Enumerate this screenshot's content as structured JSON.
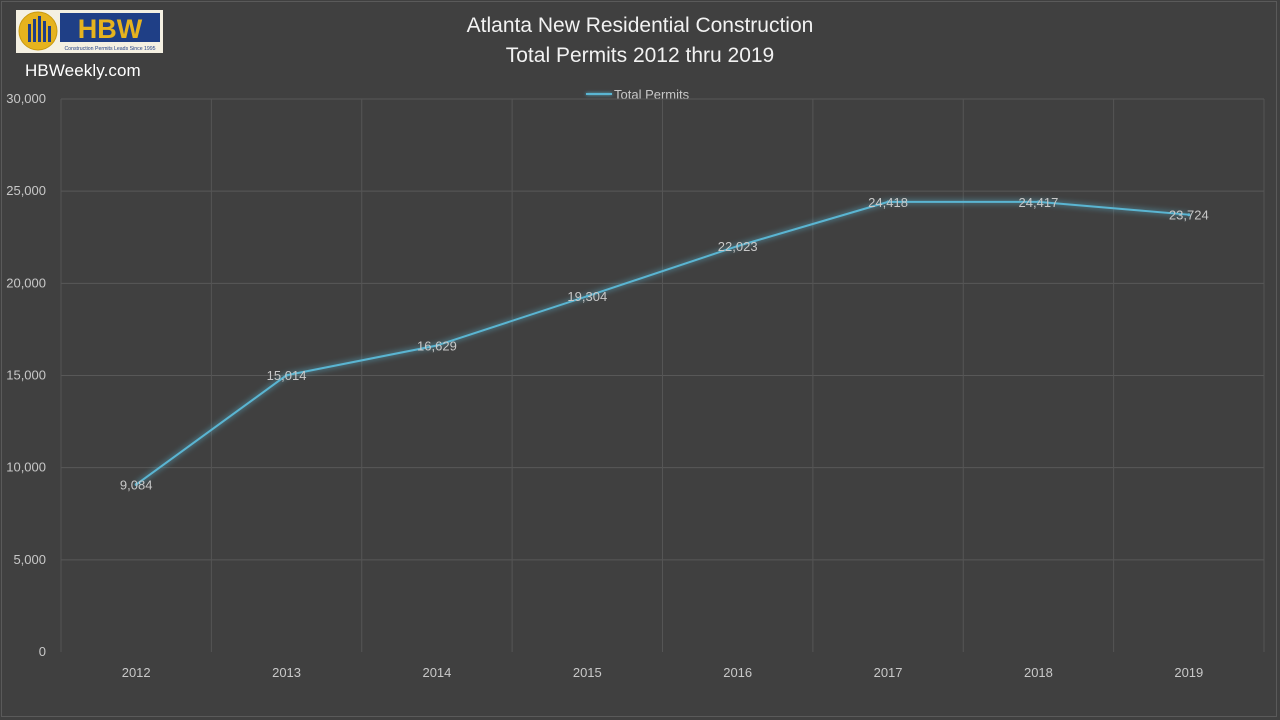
{
  "logo": {
    "text": "HBW",
    "tagline": "Construction Permits Leads Since 1995",
    "colors": {
      "blue": "#1f3f86",
      "gold": "#e6b31e"
    }
  },
  "site": "HBWeekly.com",
  "chart_data": {
    "type": "line",
    "title_line1": "Atlanta New Residential Construction",
    "title_line2": "Total Permits 2012 thru 2019",
    "categories": [
      "2012",
      "2013",
      "2014",
      "2015",
      "2016",
      "2017",
      "2018",
      "2019"
    ],
    "series": [
      {
        "name": "Total Permits",
        "values": [
          9084,
          15014,
          16629,
          19304,
          22023,
          24418,
          24417,
          23724
        ],
        "color": "#5ab5d2"
      }
    ],
    "data_labels": [
      "9,084",
      "15,014",
      "16,629",
      "19,304",
      "22,023",
      "24,418",
      "24,417",
      "23,724"
    ],
    "y_ticks": [
      "0",
      "5,000",
      "10,000",
      "15,000",
      "20,000",
      "25,000",
      "30,000"
    ],
    "ylim": [
      0,
      30000
    ],
    "grid": true,
    "legend_position": "top",
    "background": "#404040"
  }
}
